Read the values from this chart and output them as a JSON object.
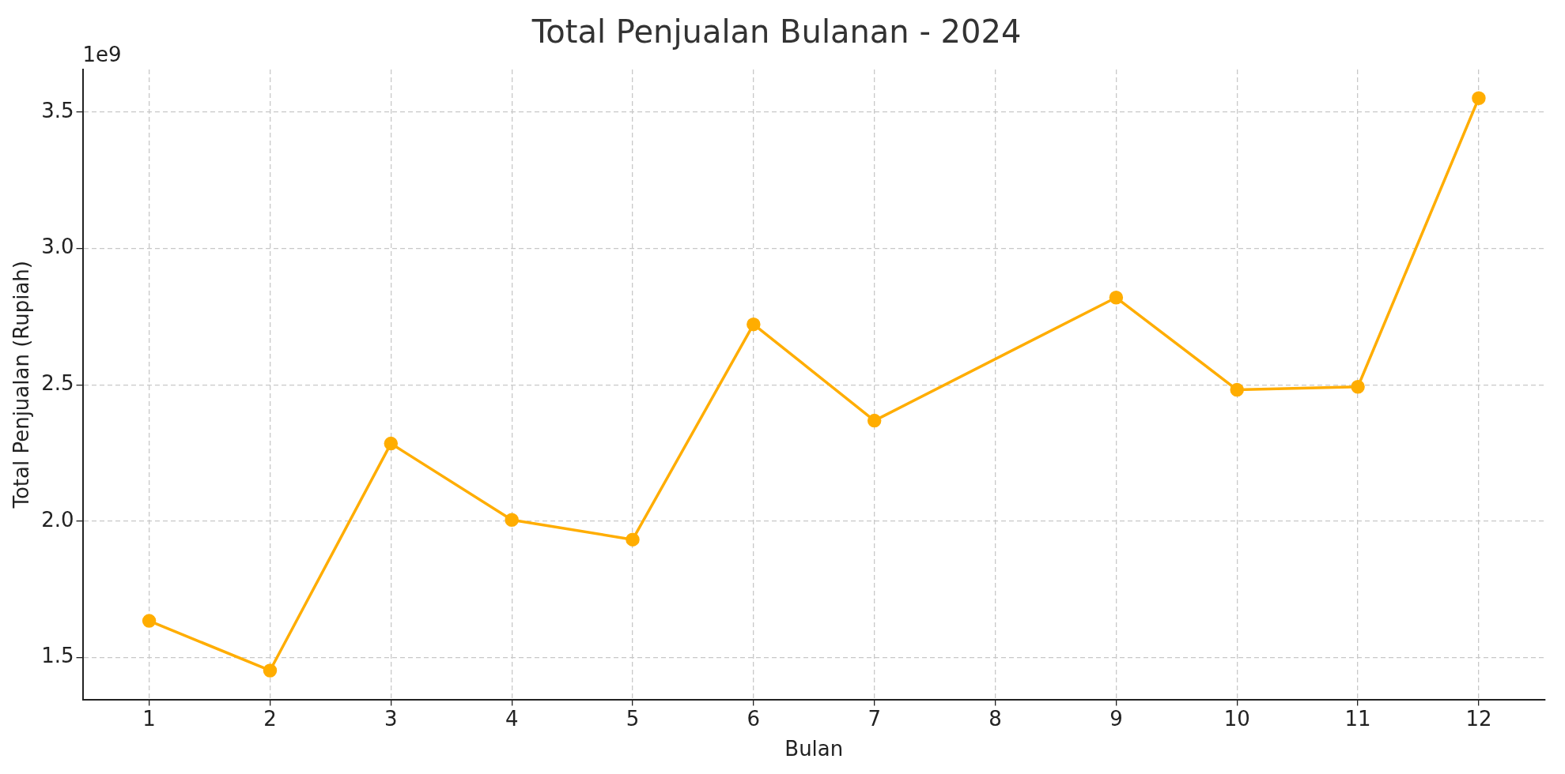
{
  "chart_data": {
    "type": "line",
    "title": "Total Penjualan Bulanan - 2024",
    "xlabel": "Bulan",
    "ylabel": "Total Penjualan (Rupiah)",
    "annotations": [
      "1e9"
    ],
    "x": [
      1,
      2,
      3,
      4,
      5,
      6,
      7,
      9,
      10,
      11,
      12
    ],
    "series": [
      {
        "color": "#ffad00",
        "values": [
          1.635,
          1.453,
          2.285,
          2.005,
          1.933,
          2.722,
          2.369,
          2.82,
          2.482,
          2.493,
          3.551
        ]
      }
    ],
    "xlim": [
      0.45,
      12.55
    ],
    "xticks": [
      1,
      2,
      3,
      4,
      5,
      6,
      7,
      8,
      9,
      10,
      11,
      12
    ],
    "ylim": [
      1.347,
      3.656
    ],
    "yticks": [
      1.5,
      {
        "value": 2,
        "label": "2.0"
      },
      2.5,
      {
        "value": 3,
        "label": "3.0"
      },
      3.5
    ],
    "grid": true,
    "marker": "circle",
    "line_style": "solid",
    "legend": false
  }
}
